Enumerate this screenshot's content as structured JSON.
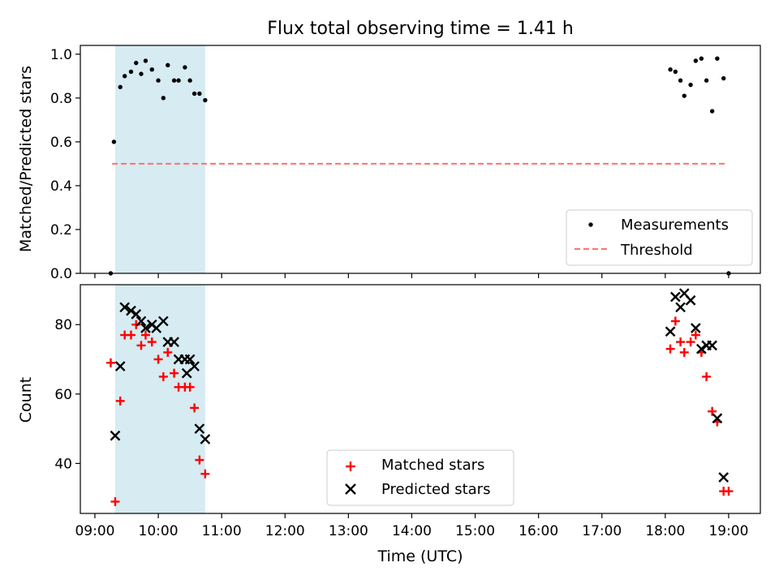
{
  "chart_data": [
    {
      "type": "scatter",
      "title": "Flux total observing time = 1.41 h",
      "ylabel": "Matched/Predicted stars",
      "xlim": [
        8.77,
        19.5
      ],
      "ylim": [
        0,
        1.04
      ],
      "yticks": [
        0.0,
        0.2,
        0.4,
        0.6,
        0.8,
        1.0
      ],
      "ytick_labels": [
        "0.0",
        "0.2",
        "0.4",
        "0.6",
        "0.8",
        "1.0"
      ],
      "shaded_span": [
        9.32,
        10.74
      ],
      "threshold": {
        "value": 0.5,
        "x_range": [
          9.27,
          18.95
        ]
      },
      "legend": {
        "position": "lower right",
        "entries": [
          "Measurements",
          "Threshold"
        ]
      },
      "colors": {
        "points": "#000000",
        "threshold": "#ff7070",
        "span": "#add8e6"
      },
      "series": [
        {
          "name": "Measurements",
          "x": [
            9.25,
            9.3,
            9.4,
            9.47,
            9.57,
            9.65,
            9.73,
            9.8,
            9.9,
            10.0,
            10.08,
            10.15,
            10.25,
            10.32,
            10.42,
            10.5,
            10.57,
            10.65,
            10.74,
            18.08,
            18.16,
            18.24,
            18.3,
            18.4,
            18.48,
            18.57,
            18.65,
            18.74,
            18.82,
            18.92,
            19.0
          ],
          "y": [
            0.0,
            0.6,
            0.85,
            0.9,
            0.92,
            0.96,
            0.91,
            0.97,
            0.93,
            0.88,
            0.8,
            0.95,
            0.88,
            0.88,
            0.94,
            0.88,
            0.82,
            0.82,
            0.79,
            0.93,
            0.92,
            0.88,
            0.81,
            0.86,
            0.97,
            0.98,
            0.88,
            0.74,
            0.98,
            0.89,
            0.0
          ]
        }
      ]
    },
    {
      "type": "scatter",
      "title": "",
      "xlabel": "Time (UTC)",
      "ylabel": "Count",
      "xlim": [
        8.77,
        19.5
      ],
      "ylim": [
        25.6,
        91.5
      ],
      "yticks": [
        40,
        60,
        80
      ],
      "ytick_labels": [
        "40",
        "60",
        "80"
      ],
      "xticks": [
        9,
        10,
        11,
        12,
        13,
        14,
        15,
        16,
        17,
        18,
        19
      ],
      "xtick_labels": [
        "09:00",
        "10:00",
        "11:00",
        "12:00",
        "13:00",
        "14:00",
        "15:00",
        "16:00",
        "17:00",
        "18:00",
        "19:00"
      ],
      "shaded_span": [
        9.32,
        10.74
      ],
      "legend": {
        "position": "lower center",
        "entries": [
          "Matched stars",
          "Predicted stars"
        ]
      },
      "colors": {
        "matched": "#ff0000",
        "predicted": "#000000",
        "span": "#add8e6"
      },
      "series": [
        {
          "name": "Matched stars",
          "marker": "+",
          "x": [
            9.25,
            9.32,
            9.4,
            9.47,
            9.57,
            9.65,
            9.73,
            9.8,
            9.9,
            10.0,
            10.08,
            10.15,
            10.25,
            10.32,
            10.42,
            10.5,
            10.57,
            10.65,
            10.74,
            18.08,
            18.16,
            18.24,
            18.3,
            18.4,
            18.48,
            18.57,
            18.65,
            18.74,
            18.82,
            18.92,
            19.0
          ],
          "y": [
            69,
            29,
            58,
            77,
            77,
            80,
            74,
            77,
            75,
            70,
            65,
            72,
            66,
            62,
            62,
            62,
            56,
            41,
            37,
            73,
            81,
            75,
            72,
            75,
            77,
            72,
            65,
            55,
            52,
            32,
            32
          ]
        },
        {
          "name": "Predicted stars",
          "marker": "x",
          "x": [
            9.32,
            9.4,
            9.47,
            9.57,
            9.65,
            9.73,
            9.8,
            9.9,
            9.97,
            10.08,
            10.15,
            10.25,
            10.32,
            10.42,
            10.45,
            10.5,
            10.57,
            10.65,
            10.74,
            18.08,
            18.16,
            18.24,
            18.3,
            18.4,
            18.48,
            18.57,
            18.65,
            18.74,
            18.82,
            18.92
          ],
          "y": [
            48,
            68,
            85,
            84,
            83,
            81,
            79,
            80,
            79,
            81,
            75,
            75,
            70,
            70,
            66,
            70,
            68,
            50,
            47,
            78,
            88,
            85,
            89,
            87,
            79,
            73,
            74,
            74,
            53,
            36
          ]
        }
      ]
    }
  ]
}
